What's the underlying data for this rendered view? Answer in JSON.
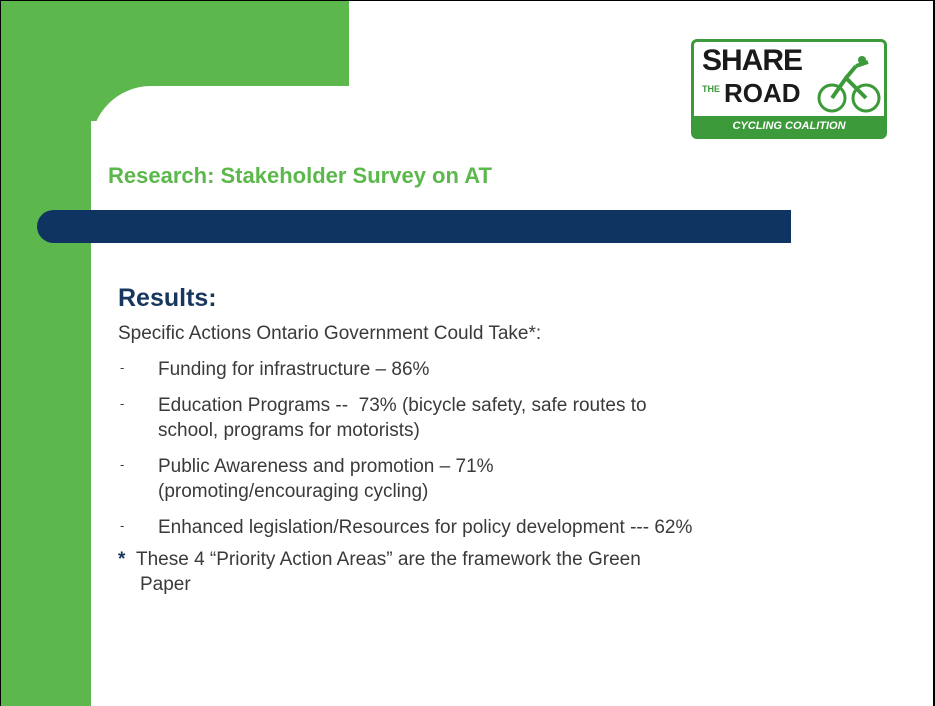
{
  "logo": {
    "top": "SHARE",
    "small": "THE",
    "middle": "ROAD",
    "bottom": "CYCLING COALITION"
  },
  "title": "Research: Stakeholder Survey on AT",
  "heading": "Results:",
  "intro": "Specific Actions Ontario Government Could Take*:",
  "marker": "-",
  "items": [
    {
      "lines": [
        "Funding for infrastructure – 86%"
      ]
    },
    {
      "lines": [
        "Education Programs --  73% (bicycle safety, safe routes to",
        "school, programs for motorists)"
      ]
    },
    {
      "lines": [
        "Public Awareness and promotion – 71%",
        "(promoting/encouraging cycling)"
      ]
    },
    {
      "lines": [
        "Enhanced legislation/Resources for policy development --- 62%"
      ]
    }
  ],
  "footnote": {
    "star": "*",
    "lines": [
      "These 4 “Priority Action Areas” are the framework the Green",
      "Paper"
    ]
  }
}
